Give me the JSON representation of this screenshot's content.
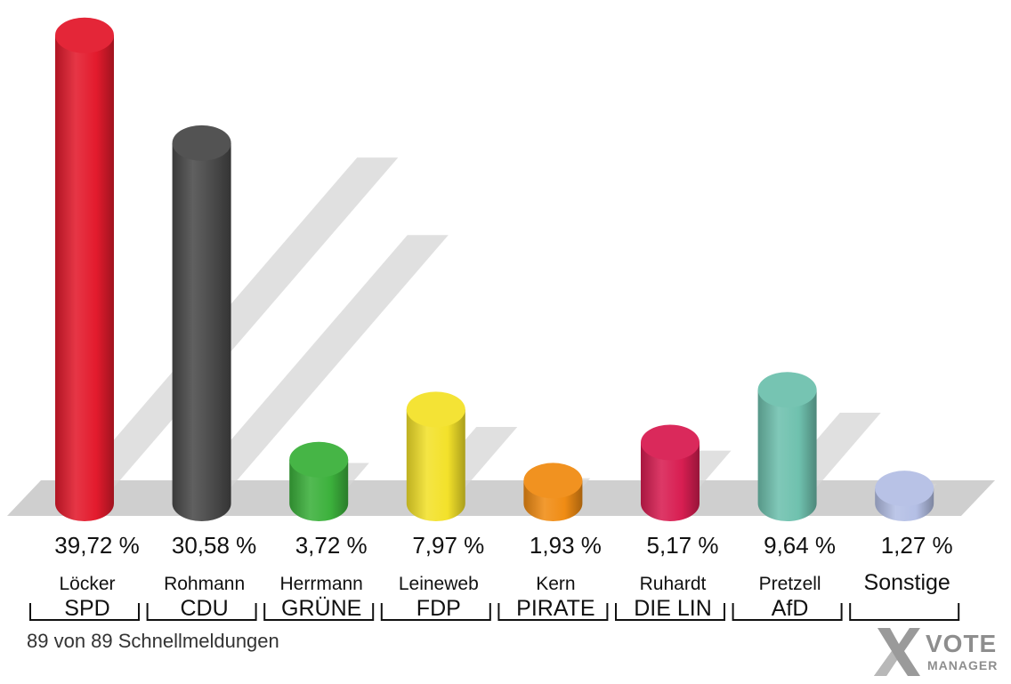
{
  "chart_data": {
    "type": "bar",
    "categories": [
      "SPD",
      "CDU",
      "GRÜNE",
      "FDP",
      "PIRATE",
      "DIE LIN",
      "AfD",
      ""
    ],
    "candidates": [
      "Löcker",
      "Rohmann",
      "Herrmann",
      "Leineweb",
      "Kern",
      "Ruhardt",
      "Pretzell",
      "Sonstige"
    ],
    "values": [
      39.72,
      30.58,
      3.72,
      7.97,
      1.93,
      5.17,
      9.64,
      1.27
    ],
    "value_labels": [
      "39,72 %",
      "30,58 %",
      "3,72 %",
      "7,97 %",
      "1,93 %",
      "5,17 %",
      "9,64 %",
      "1,27 %"
    ],
    "colors": [
      "#e31b2d",
      "#4a4a4a",
      "#3cb13c",
      "#f3e12a",
      "#f08c14",
      "#d81e52",
      "#6fc1ae",
      "#b4bfe5"
    ],
    "title": "",
    "xlabel": "",
    "ylabel": "",
    "grid": false,
    "legend": "none"
  },
  "footer": {
    "note": "89 von 89 Schnellmeldungen"
  },
  "logo": {
    "line1": "VOTE",
    "line2": "MANAGER",
    "icon": "x-cross-icon"
  }
}
